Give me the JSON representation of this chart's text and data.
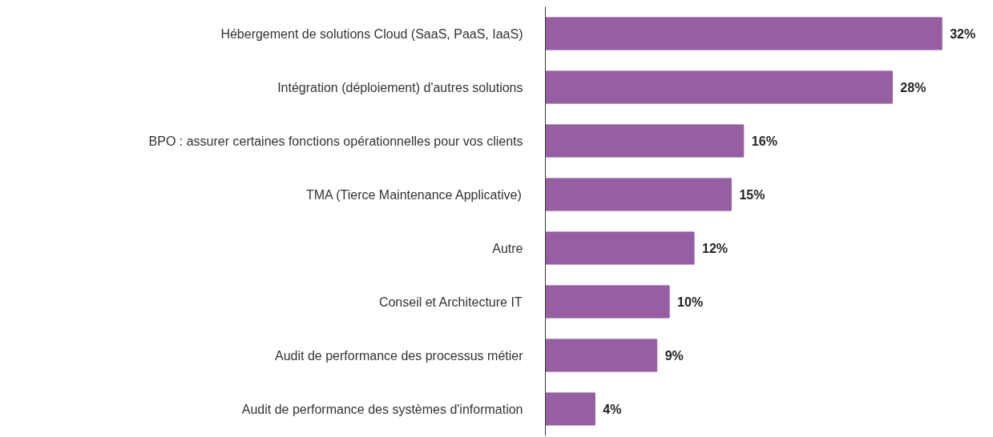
{
  "chart_data": {
    "type": "bar",
    "orientation": "horizontal",
    "categories": [
      "Hébergement de solutions Cloud (SaaS, PaaS, IaaS)",
      "Intégration (déploiement) d'autres solutions",
      "BPO : assurer certaines fonctions opérationnelles pour vos clients",
      "TMA (Tierce Maintenance Applicative)",
      "Autre",
      "Conseil et Architecture IT",
      "Audit de performance des processus métier",
      "Audit de performance des systèmes d'information"
    ],
    "values": [
      32,
      28,
      16,
      15,
      12,
      10,
      9,
      4
    ],
    "value_labels": [
      "32%",
      "28%",
      "16%",
      "15%",
      "12%",
      "10%",
      "9%",
      "4%"
    ],
    "color": "#955fa1",
    "grid": false,
    "tick_labels": "y"
  }
}
